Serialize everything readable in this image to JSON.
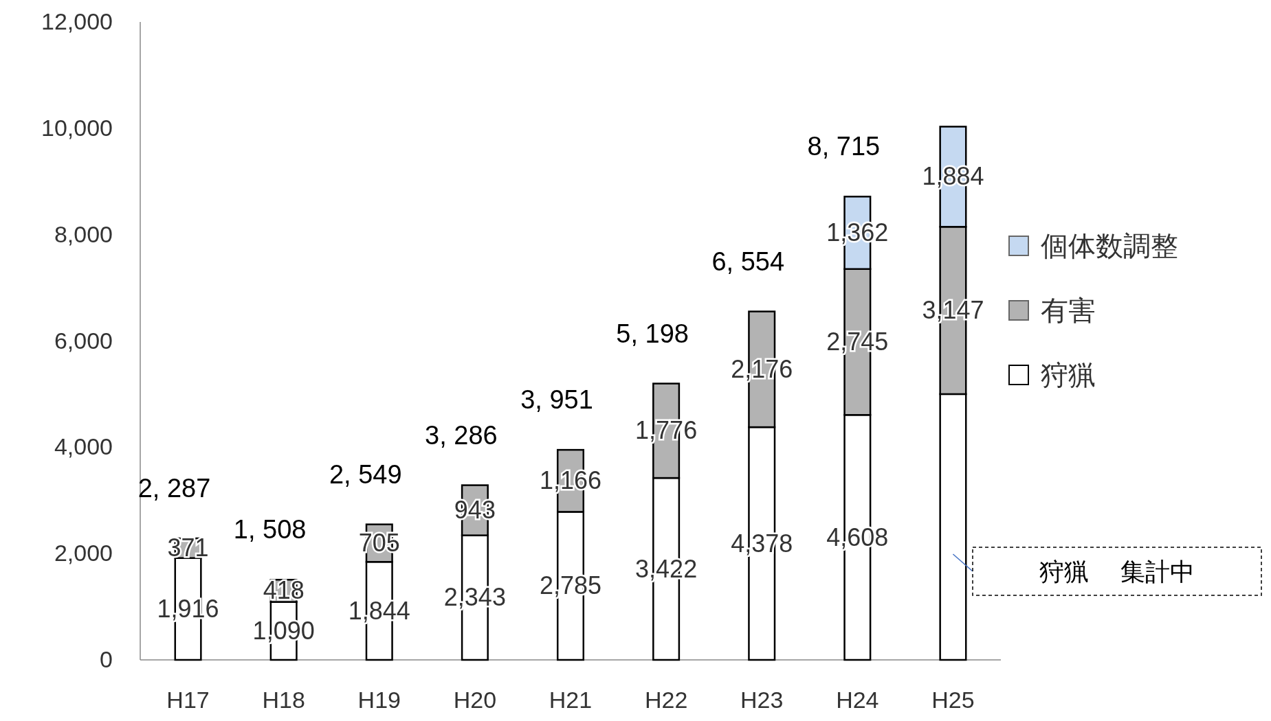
{
  "chart_data": {
    "type": "bar",
    "stacked": true,
    "categories": [
      "H17",
      "H18",
      "H19",
      "H20",
      "H21",
      "H22",
      "H23",
      "H24",
      "H25"
    ],
    "series": [
      {
        "name": "狩猟",
        "color": "#ffffff",
        "values": [
          1916,
          1090,
          1844,
          2343,
          2785,
          3422,
          4378,
          4608,
          5000
        ],
        "value_labels": [
          "1,916",
          "1,090",
          "1,844",
          "2,343",
          "2,785",
          "3,422",
          "4,378",
          "4,608",
          null
        ]
      },
      {
        "name": "有害",
        "color": "#b3b3b3",
        "values": [
          371,
          418,
          705,
          943,
          1166,
          1776,
          2176,
          2745,
          3147
        ],
        "value_labels": [
          "371",
          "418",
          "705",
          "943",
          "1,166",
          "1,776",
          "2,176",
          "2,745",
          "3,147"
        ]
      },
      {
        "name": "個体数調整",
        "color": "#c5d9f1",
        "values": [
          null,
          null,
          null,
          null,
          null,
          null,
          null,
          1362,
          1884
        ],
        "value_labels": [
          null,
          null,
          null,
          null,
          null,
          null,
          null,
          "1,362",
          "1,884"
        ]
      }
    ],
    "totals": [
      "2, 287",
      "1, 508",
      "2, 549",
      "3, 286",
      "3, 951",
      "5, 198",
      "6, 554",
      "8, 715",
      null
    ],
    "ylim": [
      0,
      12000
    ],
    "yticks": [
      0,
      {
        "value": 2000,
        "label": "2,000"
      },
      {
        "value": 4000,
        "label": "4,000"
      },
      {
        "value": 6000,
        "label": "6,000"
      },
      {
        "value": 8000,
        "label": "8,000"
      },
      {
        "value": 10000,
        "label": "10,000"
      },
      {
        "value": 12000,
        "label": "12,000"
      }
    ],
    "legend": "right",
    "annotations": [
      "狩猟　 集計中"
    ]
  }
}
